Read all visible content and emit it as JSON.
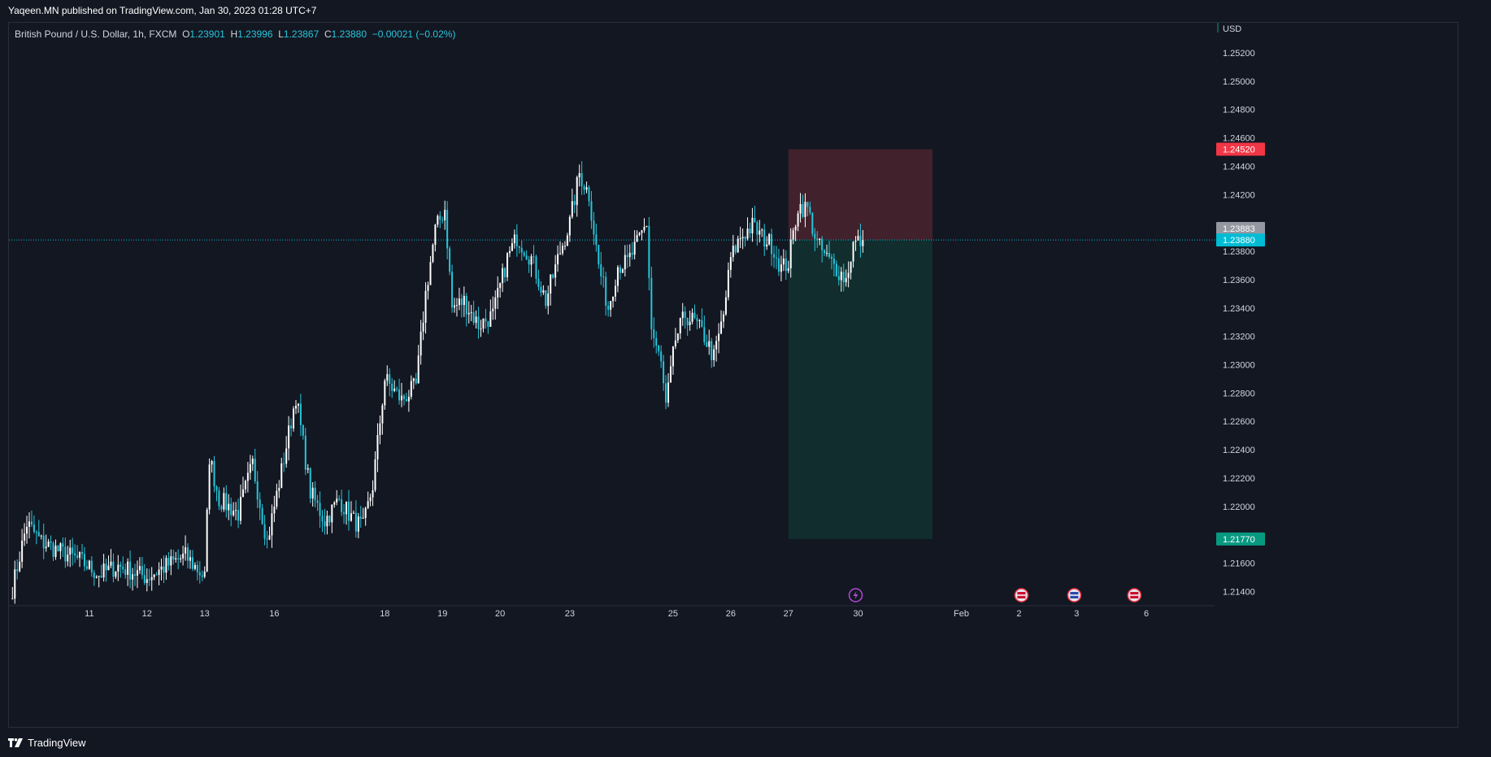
{
  "header": {
    "published_text": "Yaqeen.MN published on TradingView.com, Jan 30, 2023 01:28 UTC+7"
  },
  "legend": {
    "symbol": "British Pound / U.S. Dollar, 1h, FXCM",
    "o_label": "O",
    "o_value": "1.23901",
    "h_label": "H",
    "h_value": "1.23996",
    "l_label": "L",
    "l_value": "1.23867",
    "c_label": "C",
    "c_value": "1.23880",
    "change": "−0.00021 (−0.02%)"
  },
  "footer": {
    "brand": "TradingView",
    "logo_icon": "tradingview-logo-icon"
  },
  "colors": {
    "background": "#131722",
    "up_candle": "#ffffff",
    "down_candle": "#26c6da",
    "stop_zone": "#4a232e",
    "target_zone": "#12302f",
    "stop_tag": "#f23645",
    "target_tag": "#089981",
    "last_price_tag": "#00bcd4",
    "prev_price_tag": "#9598a1"
  },
  "chart_data": {
    "type": "candlestick",
    "currency_label": "USD",
    "ylim": [
      1.2138,
      1.2538
    ],
    "y_ticks": [
      "1.25200",
      "1.25000",
      "1.24800",
      "1.24600",
      "1.24400",
      "1.24200",
      "1.23800",
      "1.23600",
      "1.23400",
      "1.23200",
      "1.23000",
      "1.22800",
      "1.22600",
      "1.22400",
      "1.22200",
      "1.22000",
      "1.21600",
      "1.21400"
    ],
    "x_ticks": [
      {
        "label": "11",
        "bar": 32
      },
      {
        "label": "12",
        "bar": 56
      },
      {
        "label": "13",
        "bar": 80
      },
      {
        "label": "16",
        "bar": 109
      },
      {
        "label": "18",
        "bar": 155
      },
      {
        "label": "19",
        "bar": 179
      },
      {
        "label": "20",
        "bar": 203
      },
      {
        "label": "23",
        "bar": 232
      },
      {
        "label": "25",
        "bar": 275
      },
      {
        "label": "26",
        "bar": 299
      },
      {
        "label": "27",
        "bar": 323
      },
      {
        "label": "30",
        "bar": 352
      },
      {
        "label": "Feb",
        "bar": 395
      },
      {
        "label": "2",
        "bar": 419
      },
      {
        "label": "3",
        "bar": 443
      },
      {
        "label": "6",
        "bar": 472
      }
    ],
    "key_points": [
      {
        "bar": 0,
        "price": 1.2142
      },
      {
        "bar": 6,
        "price": 1.2188
      },
      {
        "bar": 12,
        "price": 1.2175
      },
      {
        "bar": 20,
        "price": 1.2168
      },
      {
        "bar": 28,
        "price": 1.2162
      },
      {
        "bar": 36,
        "price": 1.2152
      },
      {
        "bar": 44,
        "price": 1.2158
      },
      {
        "bar": 56,
        "price": 1.215
      },
      {
        "bar": 64,
        "price": 1.2158
      },
      {
        "bar": 72,
        "price": 1.2165
      },
      {
        "bar": 80,
        "price": 1.215
      },
      {
        "bar": 82,
        "price": 1.2235
      },
      {
        "bar": 86,
        "price": 1.2205
      },
      {
        "bar": 94,
        "price": 1.2195
      },
      {
        "bar": 100,
        "price": 1.223
      },
      {
        "bar": 106,
        "price": 1.2175
      },
      {
        "bar": 112,
        "price": 1.2225
      },
      {
        "bar": 118,
        "price": 1.2278
      },
      {
        "bar": 124,
        "price": 1.221
      },
      {
        "bar": 130,
        "price": 1.219
      },
      {
        "bar": 136,
        "price": 1.2205
      },
      {
        "bar": 142,
        "price": 1.219
      },
      {
        "bar": 146,
        "price": 1.2185
      },
      {
        "bar": 150,
        "price": 1.2215
      },
      {
        "bar": 155,
        "price": 1.229
      },
      {
        "bar": 162,
        "price": 1.2275
      },
      {
        "bar": 168,
        "price": 1.2285
      },
      {
        "bar": 172,
        "price": 1.235
      },
      {
        "bar": 176,
        "price": 1.2395
      },
      {
        "bar": 180,
        "price": 1.241
      },
      {
        "bar": 183,
        "price": 1.234
      },
      {
        "bar": 188,
        "price": 1.2345
      },
      {
        "bar": 194,
        "price": 1.2328
      },
      {
        "bar": 200,
        "price": 1.2335
      },
      {
        "bar": 206,
        "price": 1.2375
      },
      {
        "bar": 210,
        "price": 1.239
      },
      {
        "bar": 216,
        "price": 1.2375
      },
      {
        "bar": 222,
        "price": 1.2345
      },
      {
        "bar": 228,
        "price": 1.238
      },
      {
        "bar": 232,
        "price": 1.24
      },
      {
        "bar": 236,
        "price": 1.2435
      },
      {
        "bar": 240,
        "price": 1.242
      },
      {
        "bar": 244,
        "price": 1.237
      },
      {
        "bar": 248,
        "price": 1.234
      },
      {
        "bar": 252,
        "price": 1.237
      },
      {
        "bar": 256,
        "price": 1.2372
      },
      {
        "bar": 260,
        "price": 1.2385
      },
      {
        "bar": 264,
        "price": 1.24
      },
      {
        "bar": 266,
        "price": 1.2325
      },
      {
        "bar": 270,
        "price": 1.23
      },
      {
        "bar": 272,
        "price": 1.227
      },
      {
        "bar": 276,
        "price": 1.2318
      },
      {
        "bar": 280,
        "price": 1.2335
      },
      {
        "bar": 284,
        "price": 1.233
      },
      {
        "bar": 288,
        "price": 1.232
      },
      {
        "bar": 292,
        "price": 1.2305
      },
      {
        "bar": 296,
        "price": 1.2335
      },
      {
        "bar": 299,
        "price": 1.2375
      },
      {
        "bar": 303,
        "price": 1.239
      },
      {
        "bar": 308,
        "price": 1.2398
      },
      {
        "bar": 312,
        "price": 1.239
      },
      {
        "bar": 316,
        "price": 1.2385
      },
      {
        "bar": 320,
        "price": 1.2368
      },
      {
        "bar": 323,
        "price": 1.2372
      },
      {
        "bar": 327,
        "price": 1.2412
      },
      {
        "bar": 331,
        "price": 1.241
      },
      {
        "bar": 335,
        "price": 1.2385
      },
      {
        "bar": 339,
        "price": 1.2375
      },
      {
        "bar": 343,
        "price": 1.2368
      },
      {
        "bar": 347,
        "price": 1.236
      },
      {
        "bar": 350,
        "price": 1.2385
      },
      {
        "bar": 354,
        "price": 1.2388
      }
    ],
    "position": {
      "type": "short",
      "entry": 1.2388,
      "stop": 1.2452,
      "target": 1.2177,
      "start_bar": 323,
      "end_bar": 383,
      "stop_label": "1.24520",
      "target_label": "1.21770"
    },
    "last_price": 1.2388,
    "last_price_label": "1.23880",
    "prev_price": 1.23883,
    "prev_price_label": "1.23883",
    "events": [
      {
        "bar": 351,
        "icon": "lightning-icon"
      },
      {
        "bar": 420,
        "icon": "us-flag-icon"
      },
      {
        "bar": 442,
        "icon": "uk-flag-icon"
      },
      {
        "bar": 467,
        "icon": "us-flag-icon"
      }
    ]
  }
}
